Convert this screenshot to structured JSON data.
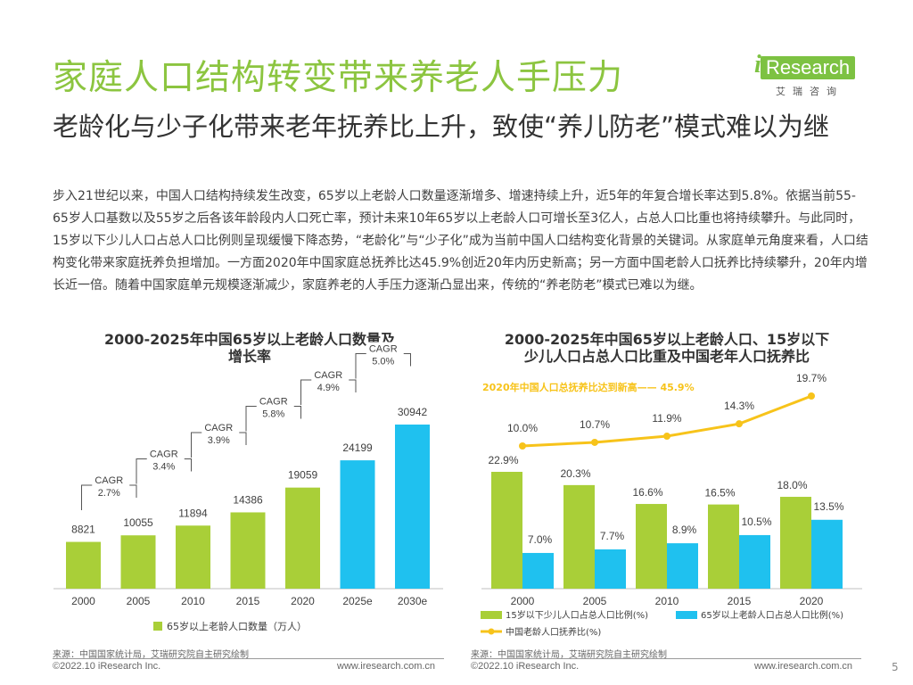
{
  "slide": {
    "title": "家庭人口结构转变带来养老人手压力",
    "subtitle": "老龄化与少子化带来老年抚养比上升，致使“养儿防老”模式难以为继",
    "body": "步入21世纪以来，中国人口结构持续发生改变，65岁以上老龄人口数量逐渐增多、增速持续上升，近5年的年复合增长率达到5.8%。依据当前55-65岁人口基数以及55岁之后各该年龄段内人口死亡率，预计未来10年65岁以上老龄人口可增长至3亿人，占总人口比重也将持续攀升。与此同时，15岁以下少儿人口占总人口比例则呈现缓慢下降态势，“老龄化”与“少子化”成为当前中国人口结构变化背景的关键词。从家庭单元角度来看，人口结构变化带来家庭抚养负担增加。一方面2020年中国家庭总抚养比达45.9%创近20年内历史新高；另一方面中国老龄人口抚养比持续攀升，20年内增长近一倍。随着中国家庭单元规模逐渐减少，家庭养老的人手压力逐渐凸显出来，传统的“养老防老”模式已难以为继。",
    "page": "5"
  },
  "logo": {
    "brand": "Research",
    "i": "i",
    "sub": "艾瑞咨询"
  },
  "footer": {
    "left_source": "来源：中国国家统计局，艾瑞研究院自主研究绘制",
    "left_copyright": "©2022.10 iResearch Inc.",
    "left_url": "www.iresearch.com.cn",
    "right_source": "来源：中国国家统计局，艾瑞研究院自主研究绘制",
    "right_copyright": "©2022.10 iResearch Inc.",
    "right_url": "www.iresearch.com.cn"
  },
  "colors": {
    "green": "#a9cf38",
    "blue": "#1fc1ef",
    "yellow": "#f7c31a",
    "title_green": "#8cc540"
  },
  "chart_data": [
    {
      "type": "bar",
      "title": "2000-2025年中国65岁以上老龄人口数量及增长率",
      "categories": [
        "2000",
        "2005",
        "2010",
        "2015",
        "2020",
        "2025e",
        "2030e"
      ],
      "series": [
        {
          "name": "65岁以上老龄人口数量（万人）",
          "values": [
            8821,
            10055,
            11894,
            14386,
            19059,
            24199,
            30942
          ]
        }
      ],
      "data_labels": [
        "8821",
        "10055",
        "11894",
        "14386",
        "19059",
        "24199",
        "30942"
      ],
      "cagr": [
        {
          "label": "CAGR",
          "value": "2.7%"
        },
        {
          "label": "CAGR",
          "value": "3.4%"
        },
        {
          "label": "CAGR",
          "value": "3.9%"
        },
        {
          "label": "CAGR",
          "value": "5.8%"
        },
        {
          "label": "CAGR",
          "value": "4.9%"
        },
        {
          "label": "CAGR",
          "value": "5.0%"
        }
      ],
      "forecast_categories": [
        "2025e",
        "2030e"
      ],
      "ylim": [
        0,
        34000
      ]
    },
    {
      "type": "bar",
      "title": "2000-2025年中国65岁以上老龄人口、15岁以下少儿人口占总人口比重及中国老年人口抚养比",
      "categories": [
        "2000",
        "2005",
        "2010",
        "2015",
        "2020"
      ],
      "series": [
        {
          "name": "15岁以下少儿人口占总人口比例(%)",
          "values": [
            22.9,
            20.3,
            16.6,
            16.5,
            18.0
          ]
        },
        {
          "name": "65岁以上老龄人口占总人口比例(%)",
          "values": [
            7.0,
            7.7,
            8.9,
            10.5,
            13.5
          ]
        },
        {
          "name": "中国老龄人口抚养比(%)",
          "type": "line",
          "values": [
            10.0,
            10.7,
            11.9,
            14.3,
            19.7
          ]
        }
      ],
      "bar_labels_green": [
        "22.9%",
        "20.3%",
        "16.6%",
        "16.5%",
        "18.0%"
      ],
      "bar_labels_blue": [
        "7.0%",
        "7.7%",
        "8.9%",
        "10.5%",
        "13.5%"
      ],
      "line_labels": [
        "10.0%",
        "10.7%",
        "11.9%",
        "14.3%",
        "19.7%"
      ],
      "annotation": "2020年中国人口总抚养比达到新高—— 45.9%",
      "ylim_bar": [
        0,
        27
      ],
      "ylim_line": [
        0,
        24
      ]
    }
  ]
}
